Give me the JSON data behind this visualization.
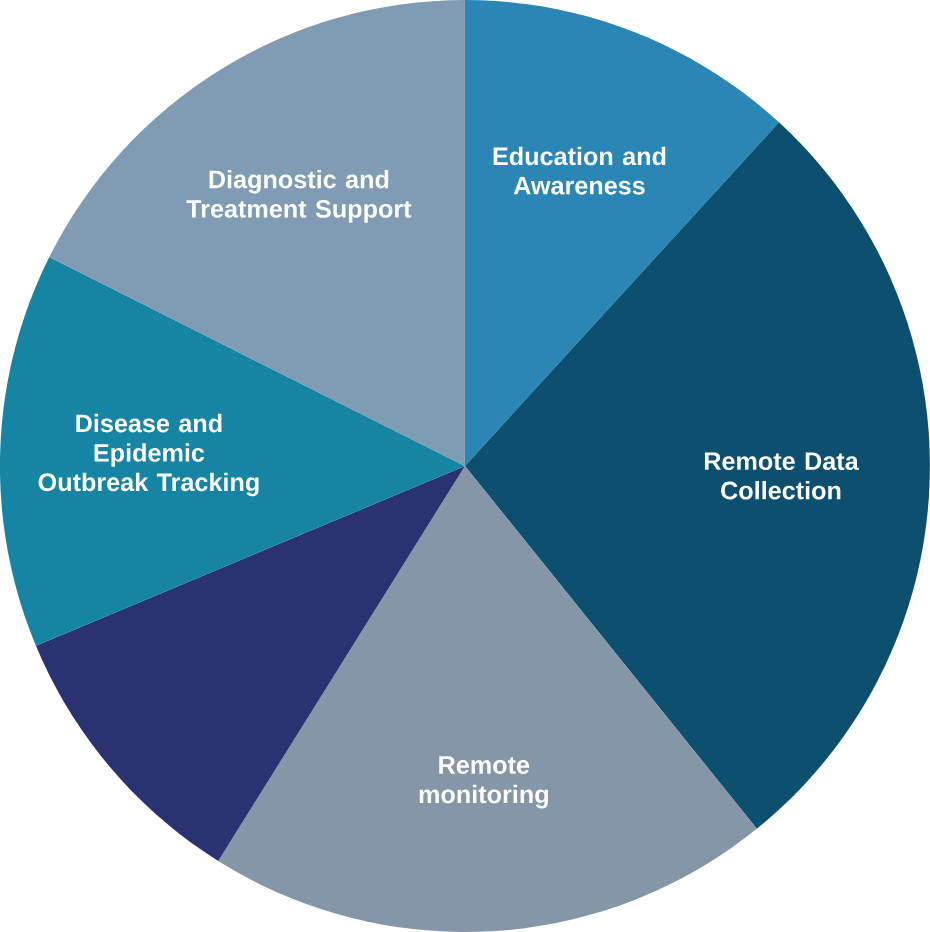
{
  "chart_data": {
    "type": "pie",
    "categories": [
      "Education and Awareness",
      "Remote Data Collection",
      "Remote monitoring",
      null,
      "Disease and Epidemic Outbreak Tracking",
      "Diagnostic and Treatment Support"
    ],
    "values": [
      11.8,
      27.4,
      19.7,
      9.8,
      13.7,
      17.6
    ],
    "colors": [
      "#2a86b4",
      "#0d4f6e",
      "#8596a8",
      "#2b3272",
      "#1585a3",
      "#7f9cb4"
    ]
  }
}
